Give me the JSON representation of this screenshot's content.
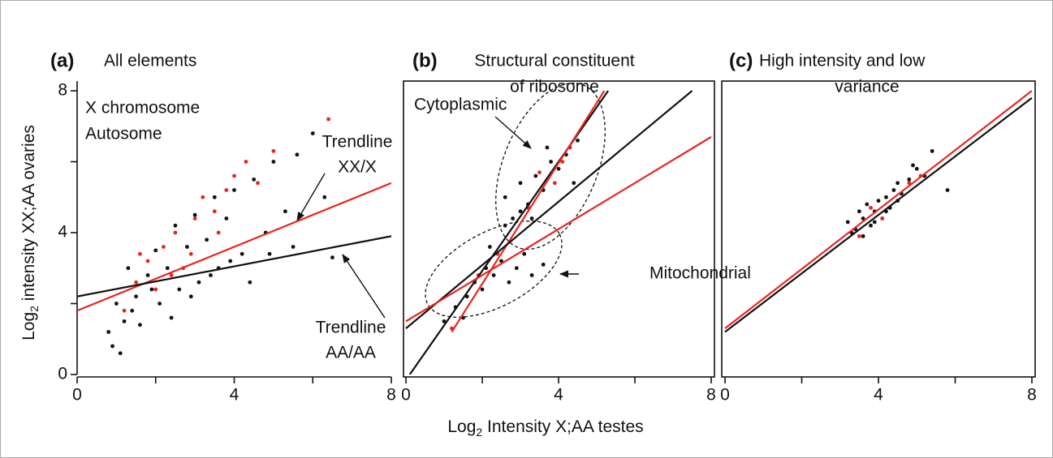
{
  "chart_data": [
    {
      "type": "scatter",
      "label": "(a)",
      "title": [
        "All elements"
      ],
      "y_label": {
        "text": "Log",
        "sub": "2",
        "rest": " intensity XX;AA ovaries"
      },
      "xlim": [
        0,
        8
      ],
      "ylim": [
        0,
        8
      ],
      "xticks": [
        0,
        4,
        8
      ],
      "yticks": [
        0,
        4,
        8
      ],
      "xminor": [
        2,
        6
      ],
      "yminor": [
        2,
        6
      ],
      "legend": true,
      "series": [
        {
          "name": "X chromosome",
          "color": "#e8261f",
          "x": [
            1.2,
            1.5,
            1.8,
            2.0,
            2.2,
            2.5,
            2.7,
            3.0,
            3.2,
            3.5,
            3.8,
            4.0,
            4.3,
            4.6,
            5.0,
            1.6,
            2.4,
            2.9,
            3.6,
            6.4
          ],
          "y": [
            1.8,
            2.6,
            3.2,
            2.4,
            3.6,
            4.0,
            3.0,
            4.4,
            5.0,
            4.6,
            5.2,
            5.6,
            6.0,
            5.4,
            6.3,
            3.4,
            2.8,
            3.4,
            4.0,
            7.2
          ]
        },
        {
          "name": "Autosome",
          "color": "#111111",
          "x": [
            0.8,
            1.0,
            1.2,
            1.3,
            1.5,
            1.6,
            1.8,
            2.0,
            2.1,
            2.3,
            2.5,
            2.6,
            2.8,
            3.0,
            3.1,
            3.3,
            3.5,
            3.6,
            3.8,
            4.0,
            4.2,
            4.5,
            4.8,
            5.0,
            5.3,
            5.6,
            6.0,
            6.3,
            0.9,
            1.4,
            1.9,
            2.4,
            2.9,
            3.4,
            3.9,
            4.4,
            4.9,
            5.5,
            6.5,
            1.1
          ],
          "y": [
            1.2,
            2.0,
            1.5,
            3.0,
            2.2,
            1.4,
            2.8,
            3.5,
            2.0,
            3.0,
            4.2,
            2.4,
            3.6,
            4.5,
            2.6,
            3.8,
            5.0,
            3.0,
            4.4,
            5.2,
            3.4,
            5.5,
            4.0,
            6.0,
            4.6,
            6.2,
            6.8,
            5.0,
            0.8,
            1.8,
            2.4,
            1.6,
            2.2,
            2.8,
            3.2,
            2.6,
            3.4,
            3.6,
            3.3,
            0.6
          ]
        }
      ],
      "trendlines": [
        {
          "color": "#e8261f",
          "x": [
            0,
            8
          ],
          "y": [
            1.8,
            5.4
          ]
        },
        {
          "color": "#111111",
          "x": [
            0,
            8
          ],
          "y": [
            2.2,
            3.9
          ]
        }
      ],
      "annotations": [
        {
          "lines": [
            "Trendline",
            "XX/X"
          ],
          "color": "#e8261f"
        },
        {
          "lines": [
            "Trendline",
            "AA/AA"
          ],
          "color": "#111111"
        }
      ]
    },
    {
      "type": "scatter",
      "label": "(b)",
      "title": [
        "Structural constituent",
        "of ribosome"
      ],
      "x_label": {
        "text": "Log",
        "sub": "2",
        "rest": " Intensity X;AA testes"
      },
      "xlim": [
        0,
        8
      ],
      "ylim": [
        0,
        8
      ],
      "xticks": [
        0,
        4,
        8
      ],
      "xminor": [
        2,
        6
      ],
      "series": [
        {
          "color": "#111111",
          "x": [
            1.0,
            1.3,
            1.6,
            1.8,
            2.0,
            2.1,
            2.3,
            2.5,
            2.7,
            2.9,
            3.1,
            3.3,
            3.6,
            1.5,
            2.2,
            2.6,
            3.0,
            2.6,
            2.8,
            3.0,
            3.2,
            3.4,
            3.6,
            3.8,
            4.0,
            4.2,
            4.4,
            3.3,
            3.7,
            4.5
          ],
          "y": [
            1.5,
            1.9,
            2.2,
            2.6,
            2.4,
            3.0,
            2.8,
            3.2,
            2.6,
            3.0,
            3.4,
            2.8,
            3.1,
            1.6,
            3.6,
            4.2,
            4.6,
            5.0,
            4.4,
            5.4,
            4.8,
            5.6,
            5.2,
            6.0,
            5.8,
            6.2,
            5.4,
            4.4,
            6.4,
            6.6
          ]
        },
        {
          "color": "#e8261f",
          "x": [
            1.2,
            1.9,
            2.4,
            3.2,
            3.5,
            3.9,
            4.1,
            4.3
          ],
          "y": [
            1.3,
            2.8,
            3.4,
            4.7,
            5.7,
            5.4,
            6.0,
            6.4
          ]
        }
      ],
      "trendlines": [
        {
          "color": "#111111",
          "x": [
            0.1,
            5.3
          ],
          "y": [
            0,
            8
          ]
        },
        {
          "color": "#e8261f",
          "x": [
            1.2,
            5.2
          ],
          "y": [
            1.2,
            8
          ]
        },
        {
          "color": "#111111",
          "x": [
            0,
            7.5
          ],
          "y": [
            1.3,
            8
          ]
        },
        {
          "color": "#e8261f",
          "x": [
            0,
            8
          ],
          "y": [
            1.5,
            6.7
          ]
        }
      ],
      "annotations": [
        {
          "lines": [
            "Cytoplasmic"
          ],
          "color": "#111111"
        },
        {
          "lines": [
            "Mitochondrial"
          ],
          "color": "#111111"
        }
      ]
    },
    {
      "type": "scatter",
      "label": "(c)",
      "title": [
        "High intensity and low",
        "variance"
      ],
      "xlim": [
        0,
        8
      ],
      "ylim": [
        0,
        8
      ],
      "xticks": [
        0,
        4,
        8
      ],
      "xminor": [
        2,
        6
      ],
      "series": [
        {
          "color": "#111111",
          "x": [
            3.2,
            3.4,
            3.5,
            3.6,
            3.7,
            3.8,
            3.9,
            4.0,
            4.1,
            4.2,
            4.3,
            4.4,
            4.5,
            4.6,
            4.8,
            5.0,
            5.2,
            5.4,
            5.8,
            3.3,
            3.6,
            3.9,
            4.2,
            4.5,
            4.9
          ],
          "y": [
            4.3,
            4.1,
            4.6,
            4.4,
            4.8,
            4.2,
            4.6,
            4.9,
            4.4,
            5.0,
            4.7,
            5.2,
            5.4,
            5.1,
            5.5,
            5.8,
            5.6,
            6.3,
            5.2,
            4.0,
            3.9,
            4.3,
            4.6,
            4.9,
            5.9
          ]
        },
        {
          "color": "#e8261f",
          "x": [
            3.5,
            3.8,
            4.1,
            4.8,
            5.1
          ],
          "y": [
            3.9,
            4.7,
            4.4,
            5.4,
            5.6
          ]
        }
      ],
      "trendlines": [
        {
          "color": "#e8261f",
          "x": [
            0,
            8
          ],
          "y": [
            1.3,
            8.0
          ]
        },
        {
          "color": "#111111",
          "x": [
            0,
            8
          ],
          "y": [
            1.2,
            7.8
          ]
        }
      ]
    }
  ]
}
